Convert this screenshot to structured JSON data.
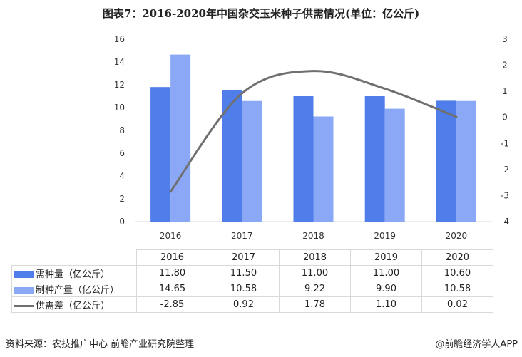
{
  "chart_data": {
    "type": "bar",
    "title": "图表7：2016-2020年中国杂交玉米种子供需情况(单位：亿公斤)",
    "categories": [
      "2016",
      "2017",
      "2018",
      "2019",
      "2020"
    ],
    "series": [
      {
        "name": "需种量（亿公斤）",
        "type": "bar",
        "axis": "left",
        "color": "#4f7de9",
        "values": [
          11.8,
          11.5,
          11.0,
          11.0,
          10.6
        ]
      },
      {
        "name": "制种产量（亿公斤）",
        "type": "bar",
        "axis": "left",
        "color": "#8aa8f5",
        "values": [
          14.65,
          10.58,
          9.22,
          9.9,
          10.58
        ]
      },
      {
        "name": "供需差（亿公斤）",
        "type": "line",
        "axis": "right",
        "color": "#707070",
        "values": [
          -2.85,
          0.92,
          1.78,
          1.1,
          0.02
        ]
      }
    ],
    "ylim_left": [
      0,
      16
    ],
    "yticks_left": [
      "0",
      "2",
      "4",
      "6",
      "8",
      "10",
      "12",
      "14",
      "16"
    ],
    "ylim_right": [
      -4,
      3
    ],
    "yticks_right": [
      "-4",
      "-3",
      "-2",
      "-1",
      "0",
      "1",
      "2",
      "3"
    ],
    "table_values": [
      [
        "11.80",
        "11.50",
        "11.00",
        "11.00",
        "10.60"
      ],
      [
        "14.65",
        "10.58",
        "9.22",
        "9.90",
        "10.58"
      ],
      [
        "-2.85",
        "0.92",
        "1.78",
        "1.10",
        "0.02"
      ]
    ],
    "grid": false,
    "legend": "data-table"
  },
  "footer": {
    "source": "资料来源：农技推广中心 前瞻产业研究院整理",
    "brand": "@前瞻经济学人APP"
  }
}
